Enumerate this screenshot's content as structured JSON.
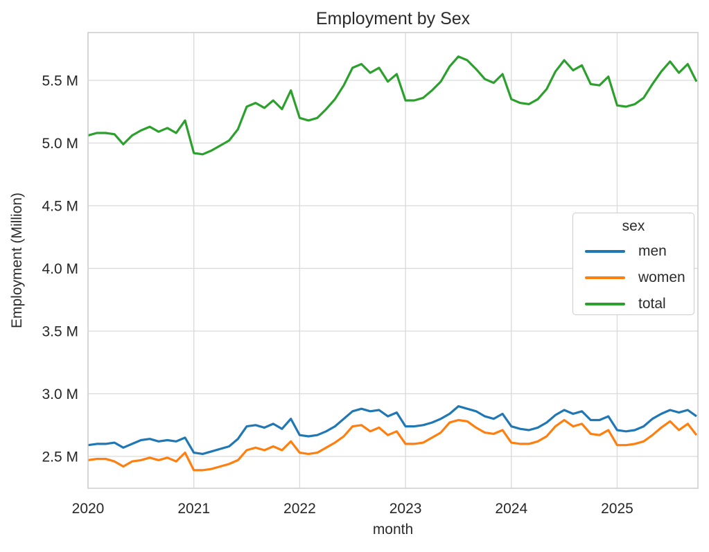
{
  "figure": {
    "title": "Employment by Sex"
  },
  "axes": {
    "xlabel": "month",
    "ylabel": "Employment (Million)"
  },
  "legend": {
    "title": "sex",
    "position": "center right",
    "entries": [
      {
        "label": "men",
        "color": "#1f77b4"
      },
      {
        "label": "women",
        "color": "#ff7f0e"
      },
      {
        "label": "total",
        "color": "#2ca02c"
      }
    ]
  },
  "chart_data": {
    "type": "line",
    "title": "Employment by Sex",
    "xlabel": "month",
    "ylabel": "Employment (Million)",
    "grid": true,
    "background": "#ffffff",
    "grid_color": "#d9d9d9",
    "spine_color": "#cccccc",
    "legend_position": "center right",
    "ylim": [
      2.25,
      5.88
    ],
    "y_ticks": [
      {
        "value": 2.5,
        "label": "2.5 M"
      },
      {
        "value": 3.0,
        "label": "3.0 M"
      },
      {
        "value": 3.5,
        "label": "3.5 M"
      },
      {
        "value": 4.0,
        "label": "4.0 M"
      },
      {
        "value": 4.5,
        "label": "4.5 M"
      },
      {
        "value": 5.0,
        "label": "5.0 M"
      },
      {
        "value": 5.5,
        "label": "5.5 M"
      }
    ],
    "x_ticks": [
      {
        "month_index": 0,
        "label": "2020"
      },
      {
        "month_index": 12,
        "label": "2021"
      },
      {
        "month_index": 24,
        "label": "2022"
      },
      {
        "month_index": 36,
        "label": "2023"
      },
      {
        "month_index": 48,
        "label": "2024"
      },
      {
        "month_index": 60,
        "label": "2025"
      }
    ],
    "x": [
      "2020-01",
      "2020-02",
      "2020-03",
      "2020-04",
      "2020-05",
      "2020-06",
      "2020-07",
      "2020-08",
      "2020-09",
      "2020-10",
      "2020-11",
      "2020-12",
      "2021-01",
      "2021-02",
      "2021-03",
      "2021-04",
      "2021-05",
      "2021-06",
      "2021-07",
      "2021-08",
      "2021-09",
      "2021-10",
      "2021-11",
      "2021-12",
      "2022-01",
      "2022-02",
      "2022-03",
      "2022-04",
      "2022-05",
      "2022-06",
      "2022-07",
      "2022-08",
      "2022-09",
      "2022-10",
      "2022-11",
      "2022-12",
      "2023-01",
      "2023-02",
      "2023-03",
      "2023-04",
      "2023-05",
      "2023-06",
      "2023-07",
      "2023-08",
      "2023-09",
      "2023-10",
      "2023-11",
      "2023-12",
      "2024-01",
      "2024-02",
      "2024-03",
      "2024-04",
      "2024-05",
      "2024-06",
      "2024-07",
      "2024-08",
      "2024-09",
      "2024-10",
      "2024-11",
      "2024-12",
      "2025-01",
      "2025-02",
      "2025-03",
      "2025-04",
      "2025-05",
      "2025-06",
      "2025-07",
      "2025-08",
      "2025-09",
      "2025-10"
    ],
    "unit": "million",
    "series": [
      {
        "name": "men",
        "color": "#1f77b4",
        "values": [
          2.59,
          2.6,
          2.6,
          2.61,
          2.57,
          2.6,
          2.63,
          2.64,
          2.62,
          2.63,
          2.62,
          2.65,
          2.53,
          2.52,
          2.54,
          2.56,
          2.58,
          2.64,
          2.74,
          2.75,
          2.73,
          2.76,
          2.72,
          2.8,
          2.67,
          2.66,
          2.67,
          2.7,
          2.74,
          2.8,
          2.86,
          2.88,
          2.86,
          2.87,
          2.82,
          2.85,
          2.74,
          2.74,
          2.75,
          2.77,
          2.8,
          2.84,
          2.9,
          2.88,
          2.86,
          2.82,
          2.8,
          2.84,
          2.74,
          2.72,
          2.71,
          2.73,
          2.77,
          2.83,
          2.87,
          2.84,
          2.86,
          2.79,
          2.79,
          2.82,
          2.71,
          2.7,
          2.71,
          2.74,
          2.8,
          2.84,
          2.87,
          2.85,
          2.87,
          2.82
        ]
      },
      {
        "name": "women",
        "color": "#ff7f0e",
        "values": [
          2.47,
          2.48,
          2.48,
          2.46,
          2.42,
          2.46,
          2.47,
          2.49,
          2.47,
          2.49,
          2.46,
          2.53,
          2.39,
          2.39,
          2.4,
          2.42,
          2.44,
          2.47,
          2.55,
          2.57,
          2.55,
          2.58,
          2.55,
          2.62,
          2.53,
          2.52,
          2.53,
          2.57,
          2.61,
          2.66,
          2.74,
          2.75,
          2.7,
          2.73,
          2.67,
          2.7,
          2.6,
          2.6,
          2.61,
          2.65,
          2.69,
          2.77,
          2.79,
          2.78,
          2.73,
          2.69,
          2.68,
          2.71,
          2.61,
          2.6,
          2.6,
          2.62,
          2.66,
          2.74,
          2.79,
          2.74,
          2.76,
          2.68,
          2.67,
          2.71,
          2.59,
          2.59,
          2.6,
          2.62,
          2.67,
          2.73,
          2.78,
          2.71,
          2.76,
          2.67
        ]
      },
      {
        "name": "total",
        "color": "#2ca02c",
        "values": [
          5.06,
          5.08,
          5.08,
          5.07,
          4.99,
          5.06,
          5.1,
          5.13,
          5.09,
          5.12,
          5.08,
          5.18,
          4.92,
          4.91,
          4.94,
          4.98,
          5.02,
          5.11,
          5.29,
          5.32,
          5.28,
          5.34,
          5.27,
          5.42,
          5.2,
          5.18,
          5.2,
          5.27,
          5.35,
          5.46,
          5.6,
          5.63,
          5.56,
          5.6,
          5.49,
          5.55,
          5.34,
          5.34,
          5.36,
          5.42,
          5.49,
          5.61,
          5.69,
          5.66,
          5.59,
          5.51,
          5.48,
          5.55,
          5.35,
          5.32,
          5.31,
          5.35,
          5.43,
          5.57,
          5.66,
          5.58,
          5.62,
          5.47,
          5.46,
          5.53,
          5.3,
          5.29,
          5.31,
          5.36,
          5.47,
          5.57,
          5.65,
          5.56,
          5.63,
          5.49
        ]
      }
    ]
  }
}
